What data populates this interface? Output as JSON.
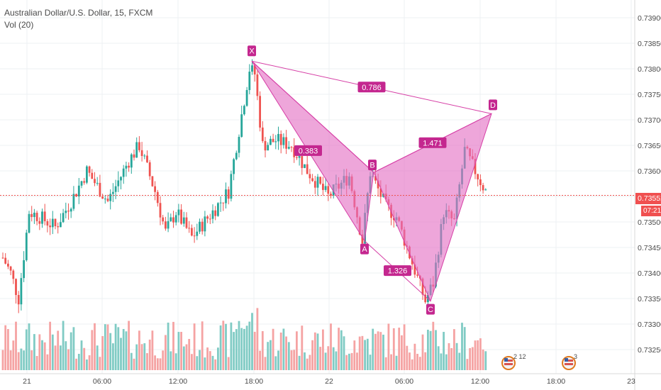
{
  "header": {
    "symbol": "Australian Dollar/U.S. Dollar, 15, FXCM",
    "indicator": "Vol (20)"
  },
  "price_axis": {
    "labels": [
      "0.73900",
      "0.73850",
      "0.73800",
      "0.73750",
      "0.73700",
      "0.73650",
      "0.73600",
      "0.73550",
      "0.73500",
      "0.73450",
      "0.73400",
      "0.73350",
      "0.73300",
      "0.73250"
    ],
    "current_price": "0.73552",
    "countdown": "07:21"
  },
  "time_axis": {
    "labels": [
      "21",
      "06:00",
      "12:00",
      "18:00",
      "22",
      "06:00",
      "12:00",
      "18:00",
      "23"
    ]
  },
  "pattern": {
    "points": [
      {
        "label": "X",
        "price": 0.73815
      },
      {
        "label": "A",
        "price": 0.73463
      },
      {
        "label": "B",
        "price": 0.73597
      },
      {
        "label": "C",
        "price": 0.73345
      },
      {
        "label": "D",
        "price": 0.73712
      }
    ],
    "ratios": [
      "0.786",
      "0.383",
      "1.471",
      "1.326"
    ]
  },
  "events": [
    {
      "label": "2 12",
      "icon": "us-flag-icon"
    },
    {
      "label": "3",
      "icon": "us-flag-icon"
    }
  ],
  "colors": {
    "up": "#26a69a",
    "down": "#ef5350",
    "vol_up": "#80cbc4",
    "vol_down": "#f5a3a3",
    "pattern_fill": "#e46fc3",
    "pattern_line": "#d63fa6",
    "label_bg": "#c4278f",
    "price_line": "#ef5350"
  },
  "chart_data": {
    "type": "candlestick",
    "title": "Australian Dollar/U.S. Dollar, 15, FXCM",
    "ylim": [
      0.73225,
      0.73935
    ],
    "current_price": 0.73552,
    "anchors": [
      {
        "t": 0,
        "p": 0.7343
      },
      {
        "t": 3,
        "p": 0.734
      },
      {
        "t": 6,
        "p": 0.7335
      },
      {
        "t": 10,
        "p": 0.7352
      },
      {
        "t": 14,
        "p": 0.7351
      },
      {
        "t": 20,
        "p": 0.7349
      },
      {
        "t": 26,
        "p": 0.7354
      },
      {
        "t": 32,
        "p": 0.736
      },
      {
        "t": 40,
        "p": 0.7354
      },
      {
        "t": 48,
        "p": 0.7362
      },
      {
        "t": 52,
        "p": 0.7365
      },
      {
        "t": 58,
        "p": 0.7356
      },
      {
        "t": 62,
        "p": 0.7348
      },
      {
        "t": 66,
        "p": 0.7352
      },
      {
        "t": 72,
        "p": 0.7347
      },
      {
        "t": 80,
        "p": 0.7352
      },
      {
        "t": 86,
        "p": 0.7356
      },
      {
        "t": 90,
        "p": 0.7368
      },
      {
        "t": 94,
        "p": 0.738
      },
      {
        "t": 96,
        "p": 0.7379
      },
      {
        "t": 99,
        "p": 0.7365
      },
      {
        "t": 104,
        "p": 0.7366
      },
      {
        "t": 110,
        "p": 0.7365
      },
      {
        "t": 116,
        "p": 0.736
      },
      {
        "t": 124,
        "p": 0.7355
      },
      {
        "t": 132,
        "p": 0.7359
      },
      {
        "t": 137,
        "p": 0.73463
      },
      {
        "t": 140,
        "p": 0.73597
      },
      {
        "t": 146,
        "p": 0.7353
      },
      {
        "t": 150,
        "p": 0.7351
      },
      {
        "t": 156,
        "p": 0.7342
      },
      {
        "t": 161,
        "p": 0.73345
      },
      {
        "t": 164,
        "p": 0.7338
      },
      {
        "t": 168,
        "p": 0.7352
      },
      {
        "t": 172,
        "p": 0.735
      },
      {
        "t": 176,
        "p": 0.7364
      },
      {
        "t": 180,
        "p": 0.736
      },
      {
        "t": 184,
        "p": 0.7356
      }
    ]
  }
}
